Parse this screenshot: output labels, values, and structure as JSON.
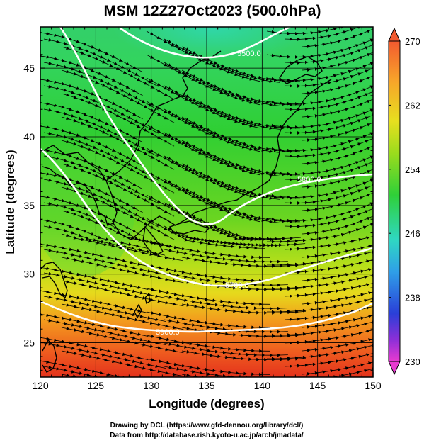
{
  "title": "MSM 12Z27Oct2023 (500.0hPa)",
  "xlabel": "Longitude (degrees)",
  "ylabel": "Latitude (degrees)",
  "x_ticks": [
    "120",
    "125",
    "130",
    "135",
    "140",
    "145",
    "150"
  ],
  "y_ticks": [
    "25",
    "30",
    "35",
    "40",
    "45"
  ],
  "colorbar": {
    "ticks": [
      "270",
      "262",
      "254",
      "246",
      "238",
      "230"
    ],
    "range": [
      230,
      270
    ]
  },
  "contour_labels": [
    "5500.0",
    "5800.0",
    "5700.0",
    "5900.0"
  ],
  "credit_line1": "Drawing by DCL (https://www.gfd-dennou.org/library/dcl/)",
  "credit_line2": "Data from http://database.rish.kyoto-u.ac.jp/arch/jmadata/",
  "colors": {
    "warm": "#e8331f",
    "mid": "#2fcf33",
    "cool": "#2fd8b0",
    "contour": "#ffffff"
  }
}
